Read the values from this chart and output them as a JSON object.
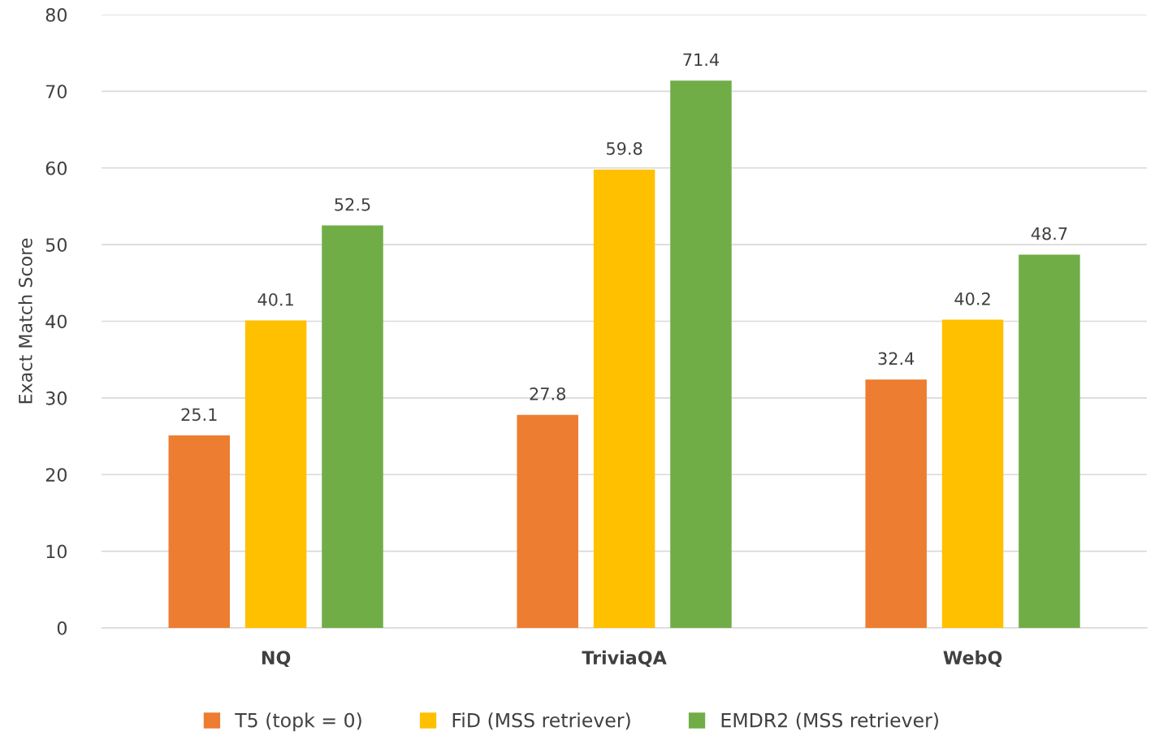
{
  "chart_data": {
    "type": "bar",
    "ylabel": "Exact Match Score",
    "categories": [
      "NQ",
      "TriviaQA",
      "WebQ"
    ],
    "series": [
      {
        "name": "T5 (topk = 0)",
        "color": "#ed7d31",
        "values": [
          25.1,
          27.8,
          32.4
        ]
      },
      {
        "name": "FiD (MSS retriever)",
        "color": "#ffc000",
        "values": [
          40.1,
          59.8,
          40.2
        ]
      },
      {
        "name": "EMDR2 (MSS retriever)",
        "color": "#70ad47",
        "values": [
          52.5,
          71.4,
          48.7
        ]
      }
    ],
    "ylim": [
      0,
      80
    ],
    "yticks": [
      0,
      10,
      20,
      30,
      40,
      50,
      60,
      70,
      80
    ],
    "grid": "y",
    "legend": "bottom",
    "data_labels": true
  }
}
